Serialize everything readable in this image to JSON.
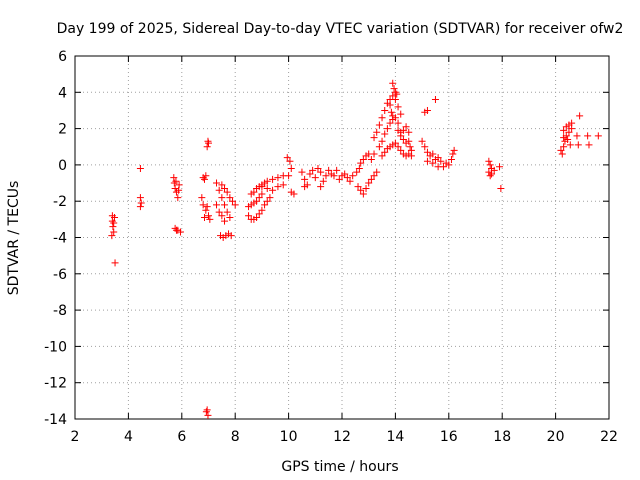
{
  "chart_data": {
    "type": "scatter",
    "title": "Day 199 of 2025, Sidereal Day-to-day VTEC variation (SDTVAR) for receiver ofw2",
    "xlabel": "GPS time / hours",
    "ylabel": "SDTVAR / TECUs",
    "xlim": [
      2,
      22
    ],
    "ylim": [
      -14,
      6
    ],
    "xticks": [
      "2",
      "4",
      "6",
      "8",
      "10",
      "12",
      "14",
      "16",
      "18",
      "20",
      "22"
    ],
    "yticks": [
      "-14",
      "-12",
      "-10",
      "-8",
      "-6",
      "-4",
      "-2",
      "0",
      "2",
      "4",
      "6"
    ],
    "grid": true,
    "marker": "+",
    "color": "#ff0000",
    "series": [
      {
        "name": "SDTVAR",
        "points": [
          [
            3.4,
            -2.8
          ],
          [
            3.4,
            -3.1
          ],
          [
            3.42,
            -3.4
          ],
          [
            3.45,
            -3.7
          ],
          [
            3.38,
            -3.9
          ],
          [
            3.48,
            -2.9
          ],
          [
            3.45,
            -3.2
          ],
          [
            3.5,
            -5.4
          ],
          [
            4.45,
            -0.2
          ],
          [
            4.45,
            -1.8
          ],
          [
            4.48,
            -2.1
          ],
          [
            4.45,
            -2.3
          ],
          [
            5.7,
            -0.7
          ],
          [
            5.72,
            -1.0
          ],
          [
            5.75,
            -1.3
          ],
          [
            5.8,
            -1.5
          ],
          [
            5.85,
            -1.8
          ],
          [
            5.9,
            -1.1
          ],
          [
            5.78,
            -0.9
          ],
          [
            5.88,
            -1.4
          ],
          [
            5.75,
            -3.5
          ],
          [
            5.85,
            -3.6
          ],
          [
            5.95,
            -3.7
          ],
          [
            5.8,
            -3.6
          ],
          [
            6.8,
            -0.7
          ],
          [
            6.9,
            -0.6
          ],
          [
            6.85,
            -0.8
          ],
          [
            6.75,
            -1.8
          ],
          [
            6.8,
            -2.2
          ],
          [
            6.9,
            -2.5
          ],
          [
            7.0,
            -2.8
          ],
          [
            7.05,
            -3.0
          ],
          [
            6.85,
            -2.9
          ],
          [
            6.95,
            -2.3
          ],
          [
            6.95,
            1.0
          ],
          [
            7.0,
            1.2
          ],
          [
            6.98,
            1.3
          ],
          [
            6.95,
            -13.5
          ],
          [
            6.98,
            -13.8
          ],
          [
            6.92,
            -13.6
          ],
          [
            7.3,
            -1.0
          ],
          [
            7.4,
            -1.4
          ],
          [
            7.5,
            -1.8
          ],
          [
            7.6,
            -2.2
          ],
          [
            7.7,
            -2.6
          ],
          [
            7.8,
            -2.9
          ],
          [
            7.3,
            -2.2
          ],
          [
            7.4,
            -2.6
          ],
          [
            7.5,
            -2.8
          ],
          [
            7.6,
            -3.1
          ],
          [
            7.45,
            -3.9
          ],
          [
            7.55,
            -4.0
          ],
          [
            7.65,
            -3.9
          ],
          [
            7.75,
            -3.8
          ],
          [
            7.85,
            -3.9
          ],
          [
            7.5,
            -1.1
          ],
          [
            7.6,
            -1.3
          ],
          [
            7.7,
            -1.5
          ],
          [
            7.8,
            -1.8
          ],
          [
            7.9,
            -2.0
          ],
          [
            8.0,
            -2.2
          ],
          [
            8.5,
            -2.8
          ],
          [
            8.6,
            -3.0
          ],
          [
            8.7,
            -3.0
          ],
          [
            8.8,
            -2.9
          ],
          [
            8.9,
            -2.7
          ],
          [
            9.0,
            -2.5
          ],
          [
            9.1,
            -2.2
          ],
          [
            9.2,
            -2.0
          ],
          [
            9.3,
            -1.8
          ],
          [
            8.5,
            -2.3
          ],
          [
            8.6,
            -2.2
          ],
          [
            8.7,
            -2.1
          ],
          [
            8.8,
            -2.0
          ],
          [
            8.9,
            -1.8
          ],
          [
            9.0,
            -1.6
          ],
          [
            8.6,
            -1.6
          ],
          [
            8.7,
            -1.5
          ],
          [
            8.8,
            -1.3
          ],
          [
            8.9,
            -1.2
          ],
          [
            9.0,
            -1.1
          ],
          [
            9.1,
            -1.0
          ],
          [
            9.2,
            -0.9
          ],
          [
            9.4,
            -0.8
          ],
          [
            9.6,
            -0.7
          ],
          [
            9.8,
            -0.6
          ],
          [
            10.0,
            -0.6
          ],
          [
            9.0,
            -1.2
          ],
          [
            9.2,
            -1.3
          ],
          [
            9.4,
            -1.4
          ],
          [
            9.6,
            -1.2
          ],
          [
            9.8,
            -1.1
          ],
          [
            9.95,
            0.4
          ],
          [
            10.05,
            0.2
          ],
          [
            10.1,
            -0.2
          ],
          [
            10.1,
            -1.5
          ],
          [
            10.2,
            -1.6
          ],
          [
            10.5,
            -0.4
          ],
          [
            10.6,
            -0.8
          ],
          [
            10.7,
            -1.1
          ],
          [
            10.8,
            -0.5
          ],
          [
            10.9,
            -0.3
          ],
          [
            11.0,
            -0.7
          ],
          [
            11.1,
            -0.2
          ],
          [
            11.2,
            -0.4
          ],
          [
            11.3,
            -0.9
          ],
          [
            11.4,
            -0.6
          ],
          [
            11.5,
            -0.3
          ],
          [
            11.6,
            -0.5
          ],
          [
            11.7,
            -0.6
          ],
          [
            11.8,
            -0.3
          ],
          [
            11.9,
            -0.8
          ],
          [
            12.0,
            -0.6
          ],
          [
            10.6,
            -1.2
          ],
          [
            11.2,
            -1.2
          ],
          [
            12.1,
            -0.5
          ],
          [
            12.2,
            -0.7
          ],
          [
            12.3,
            -0.9
          ],
          [
            12.4,
            -0.6
          ],
          [
            12.55,
            -0.4
          ],
          [
            12.65,
            -0.2
          ],
          [
            12.7,
            0.1
          ],
          [
            12.8,
            0.3
          ],
          [
            12.9,
            0.5
          ],
          [
            13.0,
            0.6
          ],
          [
            13.1,
            0.3
          ],
          [
            13.2,
            0.6
          ],
          [
            12.6,
            -1.2
          ],
          [
            12.7,
            -1.4
          ],
          [
            12.8,
            -1.6
          ],
          [
            12.9,
            -1.3
          ],
          [
            13.0,
            -1.0
          ],
          [
            13.1,
            -0.8
          ],
          [
            13.2,
            -0.6
          ],
          [
            13.3,
            -0.4
          ],
          [
            13.2,
            1.5
          ],
          [
            13.3,
            1.8
          ],
          [
            13.4,
            2.2
          ],
          [
            13.5,
            2.6
          ],
          [
            13.6,
            3.0
          ],
          [
            13.7,
            3.4
          ],
          [
            13.8,
            3.6
          ],
          [
            13.9,
            3.8
          ],
          [
            14.0,
            3.6
          ],
          [
            14.1,
            3.2
          ],
          [
            14.2,
            2.8
          ],
          [
            13.4,
            1.0
          ],
          [
            13.5,
            1.3
          ],
          [
            13.6,
            1.7
          ],
          [
            13.7,
            2.0
          ],
          [
            13.8,
            2.3
          ],
          [
            13.9,
            2.5
          ],
          [
            14.0,
            2.6
          ],
          [
            14.1,
            2.3
          ],
          [
            14.2,
            1.8
          ],
          [
            14.3,
            1.4
          ],
          [
            14.4,
            1.2
          ],
          [
            14.5,
            1.3
          ],
          [
            13.5,
            0.5
          ],
          [
            13.6,
            0.7
          ],
          [
            13.7,
            0.9
          ],
          [
            13.8,
            1.0
          ],
          [
            13.9,
            1.1
          ],
          [
            14.0,
            1.2
          ],
          [
            14.1,
            1.0
          ],
          [
            14.2,
            0.8
          ],
          [
            14.3,
            0.6
          ],
          [
            14.4,
            0.5
          ],
          [
            14.5,
            0.6
          ],
          [
            13.9,
            4.5
          ],
          [
            13.95,
            4.2
          ],
          [
            14.0,
            4.0
          ],
          [
            14.05,
            3.9
          ],
          [
            13.8,
            3.3
          ],
          [
            13.85,
            2.9
          ],
          [
            13.9,
            2.7
          ],
          [
            14.1,
            1.9
          ],
          [
            14.2,
            1.6
          ],
          [
            14.3,
            1.9
          ],
          [
            14.4,
            2.1
          ],
          [
            14.5,
            1.8
          ],
          [
            14.6,
            0.5
          ],
          [
            14.6,
            0.8
          ],
          [
            14.55,
            1.0
          ],
          [
            15.1,
            2.9
          ],
          [
            15.2,
            3.0
          ],
          [
            15.5,
            3.6
          ],
          [
            15.0,
            1.3
          ],
          [
            15.1,
            1.0
          ],
          [
            15.2,
            0.7
          ],
          [
            15.3,
            0.5
          ],
          [
            15.4,
            0.6
          ],
          [
            15.5,
            0.3
          ],
          [
            15.6,
            0.4
          ],
          [
            15.7,
            0.2
          ],
          [
            15.8,
            -0.1
          ],
          [
            15.2,
            0.2
          ],
          [
            15.4,
            0.1
          ],
          [
            15.6,
            -0.1
          ],
          [
            15.9,
            0.1
          ],
          [
            16.1,
            0.3
          ],
          [
            16.15,
            0.6
          ],
          [
            16.2,
            0.8
          ],
          [
            16.0,
            0.0
          ],
          [
            17.5,
            0.2
          ],
          [
            17.55,
            0.0
          ],
          [
            17.6,
            -0.2
          ],
          [
            17.5,
            -0.4
          ],
          [
            17.6,
            -0.5
          ],
          [
            17.7,
            -0.3
          ],
          [
            17.9,
            -0.1
          ],
          [
            17.95,
            -1.3
          ],
          [
            17.55,
            -0.6
          ],
          [
            20.2,
            0.8
          ],
          [
            20.25,
            0.6
          ],
          [
            20.3,
            1.0
          ],
          [
            20.35,
            1.3
          ],
          [
            20.4,
            1.6
          ],
          [
            20.5,
            1.8
          ],
          [
            20.6,
            2.0
          ],
          [
            20.3,
            1.9
          ],
          [
            20.4,
            2.1
          ],
          [
            20.5,
            2.2
          ],
          [
            20.6,
            2.3
          ],
          [
            20.45,
            1.4
          ],
          [
            20.55,
            1.1
          ],
          [
            20.3,
            1.5
          ],
          [
            20.8,
            1.6
          ],
          [
            20.85,
            1.1
          ],
          [
            20.9,
            2.7
          ],
          [
            21.2,
            1.6
          ],
          [
            21.25,
            1.1
          ],
          [
            21.6,
            1.6
          ]
        ]
      }
    ]
  }
}
